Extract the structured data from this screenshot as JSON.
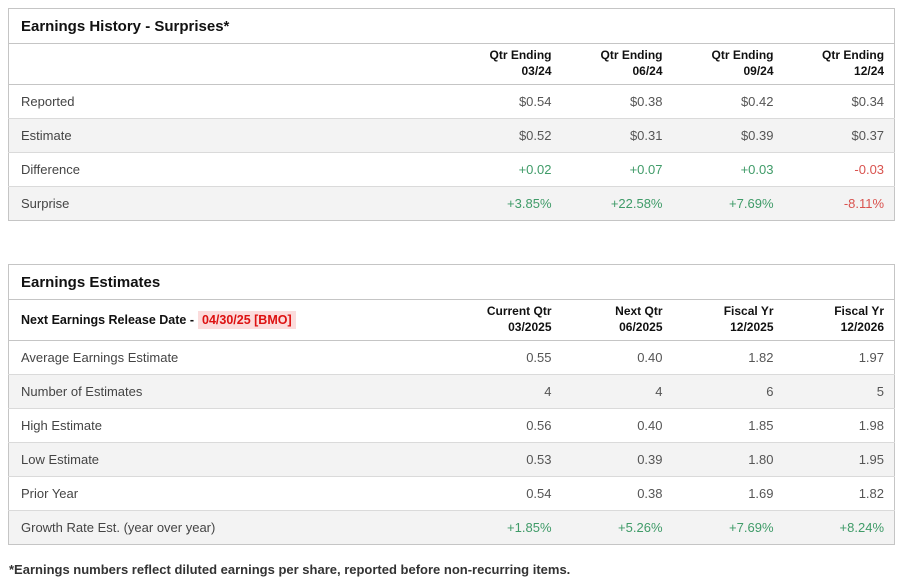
{
  "earnings_history": {
    "title": "Earnings History - Surprises*",
    "columns": [
      {
        "line1": "Qtr Ending",
        "line2": "03/24"
      },
      {
        "line1": "Qtr Ending",
        "line2": "06/24"
      },
      {
        "line1": "Qtr Ending",
        "line2": "09/24"
      },
      {
        "line1": "Qtr Ending",
        "line2": "12/24"
      }
    ],
    "rows": [
      {
        "label": "Reported",
        "values": [
          "$0.54",
          "$0.38",
          "$0.42",
          "$0.34"
        ]
      },
      {
        "label": "Estimate",
        "values": [
          "$0.52",
          "$0.31",
          "$0.39",
          "$0.37"
        ]
      },
      {
        "label": "Difference",
        "values": [
          "+0.02",
          "+0.07",
          "+0.03",
          "-0.03"
        ]
      },
      {
        "label": "Surprise",
        "values": [
          "+3.85%",
          "+22.58%",
          "+7.69%",
          "-8.11%"
        ]
      }
    ]
  },
  "earnings_estimates": {
    "title": "Earnings Estimates",
    "release_label": "Next Earnings Release Date -",
    "release_date": "04/30/25 [BMO]",
    "columns": [
      {
        "line1": "Current Qtr",
        "line2": "03/2025"
      },
      {
        "line1": "Next Qtr",
        "line2": "06/2025"
      },
      {
        "line1": "Fiscal Yr",
        "line2": "12/2025"
      },
      {
        "line1": "Fiscal Yr",
        "line2": "12/2026"
      }
    ],
    "rows": [
      {
        "label": "Average Earnings Estimate",
        "values": [
          "0.55",
          "0.40",
          "1.82",
          "1.97"
        ]
      },
      {
        "label": "Number of Estimates",
        "values": [
          "4",
          "4",
          "6",
          "5"
        ]
      },
      {
        "label": "High Estimate",
        "values": [
          "0.56",
          "0.40",
          "1.85",
          "1.98"
        ]
      },
      {
        "label": "Low Estimate",
        "values": [
          "0.53",
          "0.39",
          "1.80",
          "1.95"
        ]
      },
      {
        "label": "Prior Year",
        "values": [
          "0.54",
          "0.38",
          "1.69",
          "1.82"
        ]
      },
      {
        "label": "Growth Rate Est. (year over year)",
        "values": [
          "+1.85%",
          "+5.26%",
          "+7.69%",
          "+8.24%"
        ]
      }
    ]
  },
  "footnote": {
    "text": "*Earnings numbers reflect diluted earnings per share, reported before non-recurring items."
  },
  "colors": {
    "positive_green": "#3f9b68",
    "negative_red": "#d9534f",
    "release_date_red": "#dd1111",
    "release_date_background": "#fbdcdc",
    "table_border": "#c5c5c5",
    "row_stripe": "#f3f3f3"
  }
}
